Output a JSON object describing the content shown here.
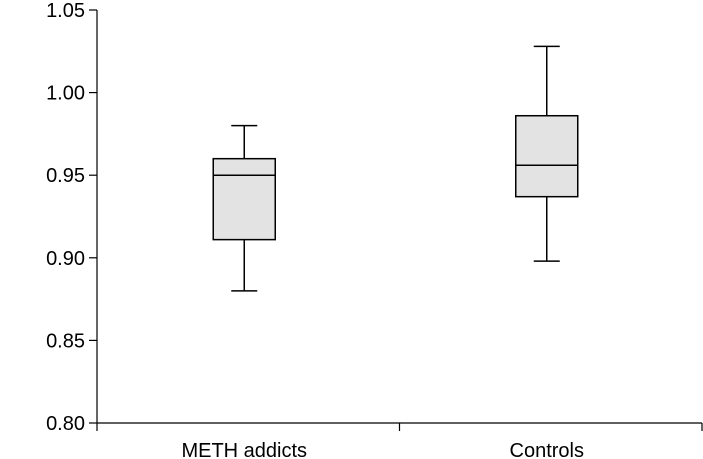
{
  "chart_data": {
    "type": "box",
    "title": "",
    "xlabel": "",
    "ylabel": "",
    "ylim": [
      0.8,
      1.05
    ],
    "yticks": [
      "0.80",
      "0.85",
      "0.90",
      "0.95",
      "1.00",
      "1.05"
    ],
    "grid": false,
    "categories": [
      "METH addicts",
      "Controls"
    ],
    "boxes": [
      {
        "category": "METH addicts",
        "min": 0.88,
        "q1": 0.911,
        "median": 0.95,
        "q3": 0.96,
        "max": 0.98
      },
      {
        "category": "Controls",
        "min": 0.898,
        "q1": 0.937,
        "median": 0.956,
        "q3": 0.986,
        "max": 1.028
      }
    ],
    "colors": {
      "box_fill": "#e3e3e3",
      "line": "#000000"
    }
  }
}
